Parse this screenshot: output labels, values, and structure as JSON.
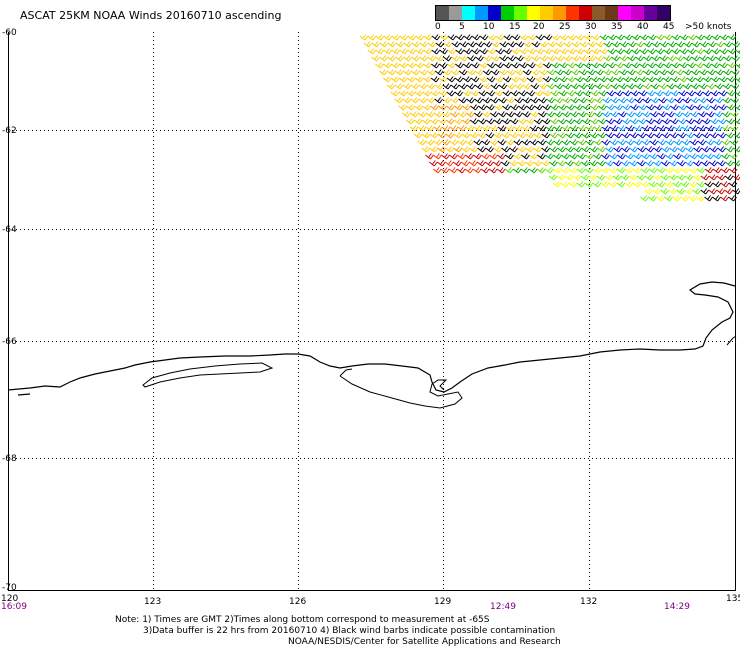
{
  "title": "ASCAT 25KM NOAA Winds 20160710 ascending",
  "legend": {
    "labels": [
      "0",
      "5",
      "10",
      "15",
      "20",
      "25",
      "30",
      "35",
      "40",
      "45",
      ">50 knots"
    ],
    "colors": [
      "#555555",
      "#9a9a9a",
      "#00ffff",
      "#0099ff",
      "#0000cc",
      "#00cc00",
      "#66ff00",
      "#ffff00",
      "#ffcc00",
      "#ff9900",
      "#ff3300",
      "#cc0000",
      "#8b5a2b",
      "#6b3a1b",
      "#ff00ff",
      "#cc00cc",
      "#660099",
      "#330066"
    ]
  },
  "axes": {
    "lat_ticks": [
      "-60",
      "-62",
      "-64",
      "-66",
      "-68",
      "-70"
    ],
    "lon_ticks": [
      "120",
      "123",
      "126",
      "129",
      "132",
      "135"
    ],
    "time_ticks": [
      "16:09",
      "12:49",
      "14:29"
    ]
  },
  "note": {
    "line1": "Note: 1) Times are GMT 2)Times along bottom correspond to measurement at -65S",
    "line2": "3)Data buffer is 22 hrs from 20160710 4) Black wind barbs indicate possible contamination"
  },
  "attribution": "NOAA/NESDIS/Center for Satellite Applications and Research",
  "colors": {
    "time_label": "#800080",
    "grid": "#000000",
    "coast": "#000000"
  }
}
